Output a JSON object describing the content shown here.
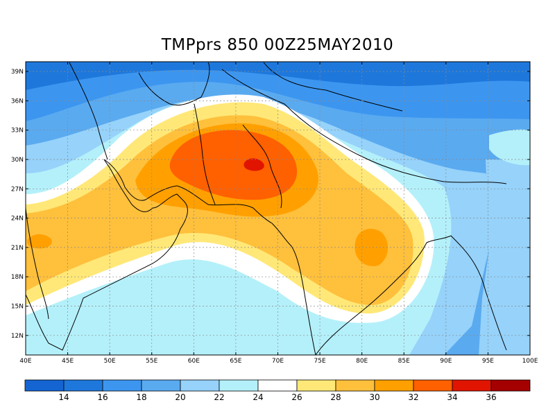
{
  "map": {
    "title": "TMPprs 850 00Z25MAY2010",
    "lat_labels": [
      "39N",
      "36N",
      "33N",
      "30N",
      "27N",
      "24N",
      "21N",
      "18N",
      "15N",
      "12N"
    ],
    "lon_labels": [
      "40E",
      "45E",
      "50E",
      "55E",
      "60E",
      "65E",
      "70E",
      "75E",
      "80E",
      "85E",
      "90E",
      "95E",
      "100E"
    ],
    "extent": {
      "lon": [
        40,
        100
      ],
      "lat": [
        10,
        40
      ]
    },
    "grid_lat": [
      12,
      15,
      18,
      21,
      24,
      27,
      30,
      33,
      36,
      39
    ],
    "grid_lon": [
      45,
      50,
      55,
      60,
      65,
      70,
      75,
      80,
      85,
      90,
      95
    ]
  },
  "colorbar": {
    "labels": [
      "14",
      "16",
      "18",
      "20",
      "22",
      "24",
      "26",
      "28",
      "30",
      "32",
      "34",
      "36"
    ],
    "colors": [
      "#1464d2",
      "#1e78dc",
      "#3c96f0",
      "#5aaaf0",
      "#96d2fa",
      "#b4f0fa",
      "#ffffff",
      "#ffe878",
      "#ffc03c",
      "#ffa000",
      "#ff6000",
      "#e11400",
      "#a50000"
    ]
  }
}
